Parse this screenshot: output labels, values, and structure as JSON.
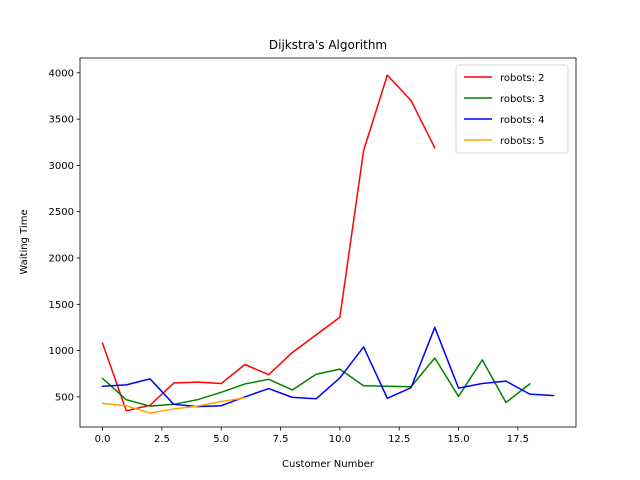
{
  "chart_data": {
    "type": "line",
    "title": "Dijkstra's Algorithm",
    "xlabel": "Customer Number",
    "ylabel": "Waiting Time",
    "xlim": [
      -0.95,
      19.95
    ],
    "ylim": [
      175,
      4160
    ],
    "xticks": [
      0.0,
      2.5,
      5.0,
      7.5,
      10.0,
      12.5,
      15.0,
      17.5
    ],
    "xtick_labels": [
      "0.0",
      "2.5",
      "5.0",
      "7.5",
      "10.0",
      "12.5",
      "15.0",
      "17.5"
    ],
    "yticks": [
      500,
      1000,
      1500,
      2000,
      2500,
      3000,
      3500,
      4000
    ],
    "ytick_labels": [
      "500",
      "1000",
      "1500",
      "2000",
      "2500",
      "3000",
      "3500",
      "4000"
    ],
    "grid": false,
    "legend_position": "top-right",
    "series": [
      {
        "name": "robots: 2",
        "color": "#ff0000",
        "x": [
          0,
          1,
          2,
          3,
          4,
          5,
          6,
          7,
          8,
          9,
          10,
          11,
          12,
          13,
          14
        ],
        "values": [
          1080,
          350,
          410,
          650,
          660,
          645,
          850,
          740,
          980,
          1170,
          1360,
          3160,
          3975,
          3700,
          3190
        ]
      },
      {
        "name": "robots: 3",
        "color": "#008000",
        "x": [
          0,
          1,
          2,
          3,
          4,
          5,
          6,
          7,
          8,
          9,
          10,
          11,
          12,
          13,
          14,
          15,
          16,
          17,
          18
        ],
        "values": [
          700,
          470,
          400,
          420,
          470,
          550,
          640,
          690,
          575,
          745,
          800,
          620,
          615,
          610,
          920,
          505,
          900,
          440,
          640
        ]
      },
      {
        "name": "robots: 4",
        "color": "#0000ff",
        "x": [
          0,
          1,
          2,
          3,
          4,
          5,
          6,
          7,
          8,
          9,
          10,
          11,
          12,
          13,
          14,
          15,
          16,
          17,
          18,
          19
        ],
        "values": [
          615,
          630,
          695,
          420,
          395,
          405,
          500,
          590,
          495,
          480,
          705,
          1040,
          485,
          600,
          1250,
          595,
          645,
          670,
          530,
          515
        ]
      },
      {
        "name": "robots: 5",
        "color": "#ffa500",
        "x": [
          0,
          1,
          2,
          3,
          4,
          5,
          6
        ],
        "values": [
          430,
          405,
          325,
          370,
          400,
          450,
          490
        ]
      }
    ]
  }
}
